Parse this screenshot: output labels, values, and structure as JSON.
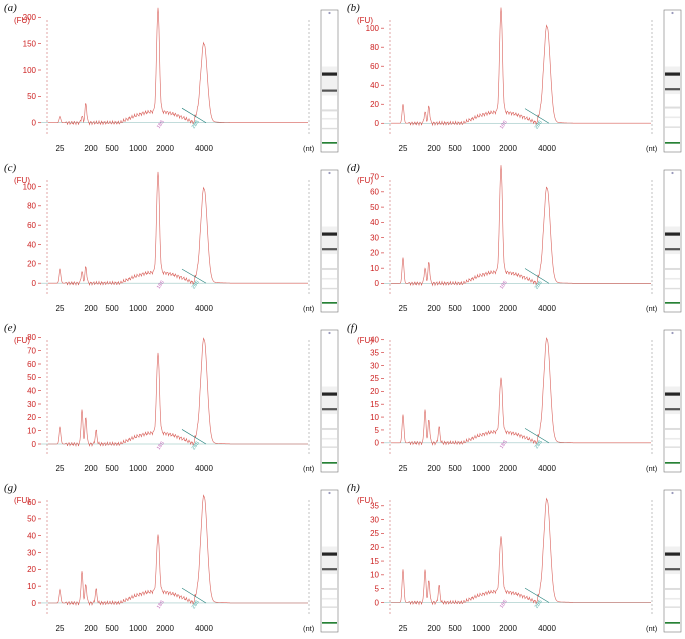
{
  "chart_data": [
    {
      "type": "line",
      "panel_label": "(a)",
      "ylabel": "(FU)",
      "xlabel": "(nt)",
      "x_ticks": [
        "25",
        "200",
        "500",
        "1000",
        "2000",
        "4000"
      ],
      "y_ticks": [
        0,
        50,
        100,
        150,
        200
      ],
      "ylim": [
        -10,
        210
      ],
      "marker_labels": [
        "18S",
        "28S"
      ],
      "peaks": [
        {
          "nt": 25,
          "fu": 12
        },
        {
          "nt": 150,
          "fu": 12
        },
        {
          "nt": 170,
          "fu": 37
        },
        {
          "nt": 1900,
          "fu": 197
        },
        {
          "nt": 4000,
          "fu": 148
        }
      ],
      "lane_bands": [
        0.44,
        0.56,
        0.7,
        0.76,
        0.83,
        0.93
      ]
    },
    {
      "type": "line",
      "panel_label": "(b)",
      "ylabel": "(FU)",
      "xlabel": "(nt)",
      "x_ticks": [
        "25",
        "200",
        "500",
        "1000",
        "2000",
        "4000"
      ],
      "y_ticks": [
        0,
        20,
        40,
        60,
        80,
        100
      ],
      "ylim": [
        -5,
        117
      ],
      "marker_labels": [
        "18S",
        "28S"
      ],
      "peaks": [
        {
          "nt": 25,
          "fu": 20
        },
        {
          "nt": 150,
          "fu": 12
        },
        {
          "nt": 170,
          "fu": 18
        },
        {
          "nt": 1900,
          "fu": 110
        },
        {
          "nt": 4000,
          "fu": 101
        }
      ],
      "lane_bands": [
        0.44,
        0.55,
        0.68,
        0.75,
        0.82,
        0.93
      ]
    },
    {
      "type": "line",
      "panel_label": "(c)",
      "ylabel": "(FU)",
      "xlabel": "(nt)",
      "x_ticks": [
        "25",
        "200",
        "500",
        "1000",
        "2000",
        "4000"
      ],
      "y_ticks": [
        0,
        20,
        40,
        60,
        80,
        100
      ],
      "ylim": [
        -5,
        115
      ],
      "marker_labels": [
        "18S",
        "28S"
      ],
      "peaks": [
        {
          "nt": 25,
          "fu": 15
        },
        {
          "nt": 150,
          "fu": 12
        },
        {
          "nt": 170,
          "fu": 17
        },
        {
          "nt": 1900,
          "fu": 104
        },
        {
          "nt": 4000,
          "fu": 97
        }
      ],
      "lane_bands": [
        0.44,
        0.55,
        0.69,
        0.76,
        0.83,
        0.93
      ]
    },
    {
      "type": "line",
      "panel_label": "(d)",
      "ylabel": "(FU)",
      "xlabel": "(nt)",
      "x_ticks": [
        "25",
        "200",
        "500",
        "1000",
        "2000",
        "4000"
      ],
      "y_ticks": [
        0,
        10,
        20,
        30,
        40,
        50,
        60,
        70
      ],
      "ylim": [
        -3,
        73
      ],
      "marker_labels": [
        "18S",
        "28S"
      ],
      "peaks": [
        {
          "nt": 25,
          "fu": 17
        },
        {
          "nt": 150,
          "fu": 10
        },
        {
          "nt": 170,
          "fu": 14
        },
        {
          "nt": 1900,
          "fu": 70
        },
        {
          "nt": 4000,
          "fu": 62
        }
      ],
      "lane_bands": [
        0.44,
        0.55,
        0.69,
        0.76,
        0.83,
        0.93
      ]
    },
    {
      "type": "line",
      "panel_label": "(e)",
      "ylabel": "(FU)",
      "xlabel": "(nt)",
      "x_ticks": [
        "25",
        "200",
        "500",
        "1000",
        "2000",
        "4000"
      ],
      "y_ticks": [
        0,
        10,
        20,
        30,
        40,
        50,
        60,
        70,
        80
      ],
      "ylim": [
        -3,
        84
      ],
      "marker_labels": [
        "18S",
        "28S"
      ],
      "peaks": [
        {
          "nt": 25,
          "fu": 13
        },
        {
          "nt": 150,
          "fu": 26
        },
        {
          "nt": 170,
          "fu": 20
        },
        {
          "nt": 250,
          "fu": 10
        },
        {
          "nt": 1900,
          "fu": 60
        },
        {
          "nt": 4000,
          "fu": 78
        }
      ],
      "lane_bands": [
        0.44,
        0.55,
        0.69,
        0.76,
        0.82,
        0.93
      ]
    },
    {
      "type": "line",
      "panel_label": "(f)",
      "ylabel": "(FU)",
      "xlabel": "(nt)",
      "x_ticks": [
        "25",
        "200",
        "500",
        "1000",
        "2000",
        "4000"
      ],
      "y_ticks": [
        0,
        5,
        10,
        15,
        20,
        25,
        30,
        35,
        40
      ],
      "ylim": [
        -2,
        43
      ],
      "marker_labels": [
        "18S",
        "28S"
      ],
      "peaks": [
        {
          "nt": 25,
          "fu": 11
        },
        {
          "nt": 150,
          "fu": 13
        },
        {
          "nt": 170,
          "fu": 9
        },
        {
          "nt": 250,
          "fu": 6
        },
        {
          "nt": 1900,
          "fu": 21
        },
        {
          "nt": 4000,
          "fu": 40
        }
      ],
      "lane_bands": [
        0.44,
        0.55,
        0.69,
        0.76,
        0.82,
        0.93
      ]
    },
    {
      "type": "line",
      "panel_label": "(g)",
      "ylabel": "(FU)",
      "xlabel": "(nt)",
      "x_ticks": [
        "25",
        "200",
        "500",
        "1000",
        "2000",
        "4000"
      ],
      "y_ticks": [
        0,
        10,
        20,
        30,
        40,
        50,
        60
      ],
      "ylim": [
        -3,
        66
      ],
      "marker_labels": [
        "18S",
        "28S"
      ],
      "peaks": [
        {
          "nt": 25,
          "fu": 8
        },
        {
          "nt": 150,
          "fu": 19
        },
        {
          "nt": 170,
          "fu": 11
        },
        {
          "nt": 250,
          "fu": 8
        },
        {
          "nt": 1900,
          "fu": 34
        },
        {
          "nt": 4000,
          "fu": 63
        }
      ],
      "lane_bands": [
        0.44,
        0.55,
        0.69,
        0.76,
        0.82,
        0.93
      ]
    },
    {
      "type": "line",
      "panel_label": "(h)",
      "ylabel": "(FU)",
      "xlabel": "(nt)",
      "x_ticks": [
        "25",
        "200",
        "500",
        "1000",
        "2000",
        "4000"
      ],
      "y_ticks": [
        0,
        5,
        10,
        15,
        20,
        25,
        30,
        35
      ],
      "ylim": [
        -2,
        40
      ],
      "marker_labels": [
        "18S",
        "28S"
      ],
      "peaks": [
        {
          "nt": 25,
          "fu": 12
        },
        {
          "nt": 150,
          "fu": 12
        },
        {
          "nt": 170,
          "fu": 8
        },
        {
          "nt": 250,
          "fu": 6
        },
        {
          "nt": 1900,
          "fu": 20
        },
        {
          "nt": 4000,
          "fu": 37
        }
      ],
      "lane_bands": [
        0.44,
        0.55,
        0.69,
        0.76,
        0.82,
        0.93
      ]
    }
  ],
  "colors": {
    "trace": "#d9605a",
    "axis_text": "#cc1f1f",
    "baseline": "#1f7f7a",
    "marker_18s": "#c066b8",
    "marker_28s": "#3fa39c",
    "lane_marker": "#1a7a2a"
  }
}
